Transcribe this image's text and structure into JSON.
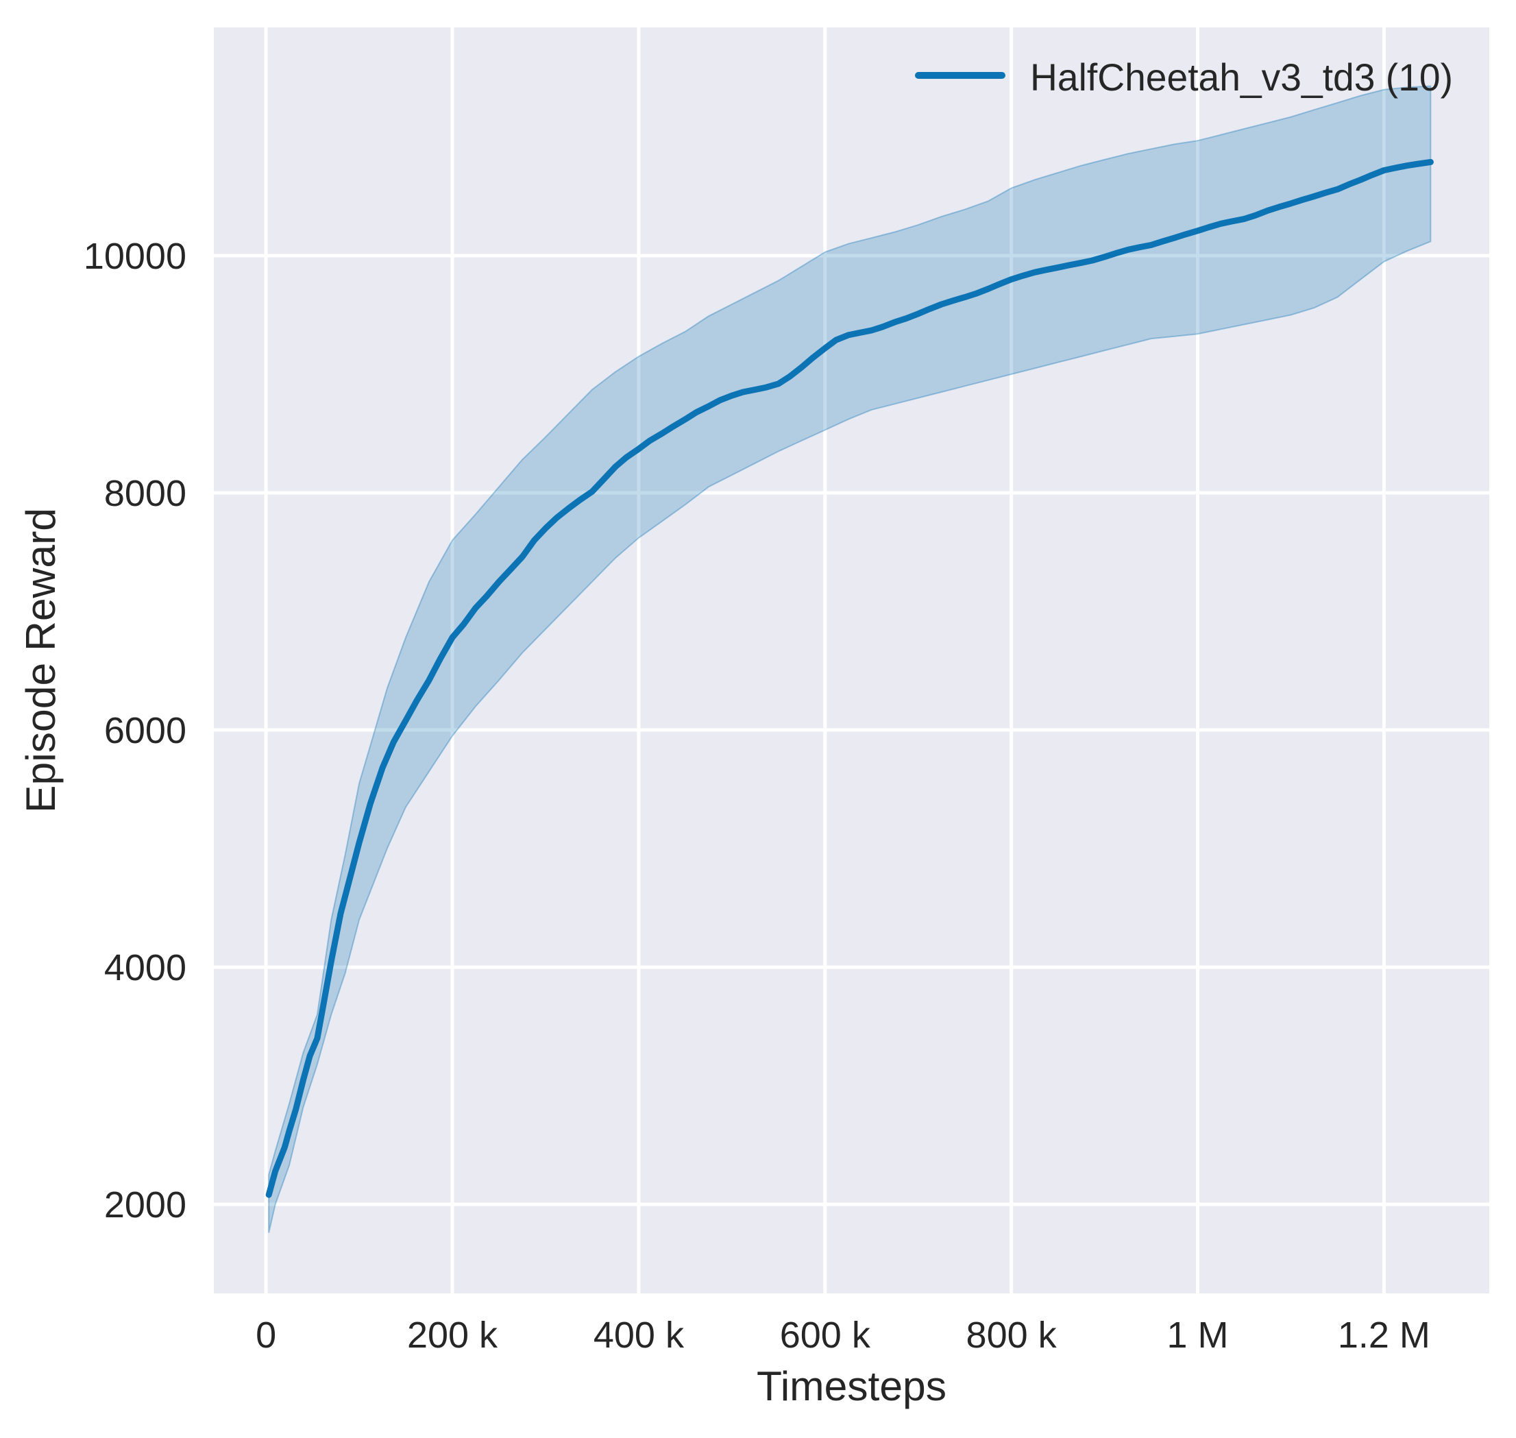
{
  "chart_data": {
    "type": "line",
    "title": "",
    "xlabel": "Timesteps",
    "ylabel": "Episode Reward",
    "grid": true,
    "legend_position": "upper right",
    "axes_background_color": "#eaeaf2",
    "grid_color": "#ffffff",
    "text_color": "#262626",
    "xlim": [
      -56000,
      1313000
    ],
    "ylim": [
      1249,
      11925
    ],
    "xticks": [
      {
        "value": 0,
        "label": "0"
      },
      {
        "value": 200000,
        "label": "200 k"
      },
      {
        "value": 400000,
        "label": "400 k"
      },
      {
        "value": 600000,
        "label": "600 k"
      },
      {
        "value": 800000,
        "label": "800 k"
      },
      {
        "value": 1000000,
        "label": "1 M"
      },
      {
        "value": 1200000,
        "label": "1.2 M"
      }
    ],
    "yticks": [
      {
        "value": 2000,
        "label": "2000"
      },
      {
        "value": 4000,
        "label": "4000"
      },
      {
        "value": 6000,
        "label": "6000"
      },
      {
        "value": 8000,
        "label": "8000"
      },
      {
        "value": 10000,
        "label": "10000"
      }
    ],
    "legend": {
      "entries": [
        {
          "label": "HalfCheetah_v3_td3 (10)",
          "color": "#0c73b4"
        }
      ]
    },
    "series": [
      {
        "name": "HalfCheetah_v3_td3 (10)",
        "color": "#0c73b4",
        "band_fill_opacity": 0.25,
        "band_edge_opacity": 0.35,
        "x": [
          3000,
          10000,
          20000,
          25000,
          32000,
          40000,
          47000,
          55000,
          62000,
          70000,
          80000,
          90000,
          100000,
          112000,
          125000,
          137000,
          150000,
          162000,
          175000,
          187000,
          200000,
          212000,
          225000,
          237000,
          250000,
          262000,
          275000,
          288000,
          300000,
          312000,
          325000,
          337000,
          350000,
          362000,
          375000,
          387000,
          400000,
          412000,
          425000,
          437000,
          450000,
          462000,
          475000,
          487000,
          500000,
          512000,
          525000,
          537000,
          550000,
          562000,
          575000,
          587000,
          600000,
          612000,
          625000,
          637000,
          650000,
          662000,
          675000,
          687000,
          700000,
          712000,
          725000,
          737000,
          750000,
          762000,
          775000,
          787000,
          800000,
          812000,
          825000,
          837000,
          850000,
          862000,
          875000,
          887000,
          900000,
          912000,
          925000,
          937000,
          950000,
          962000,
          975000,
          987000,
          1000000,
          1012000,
          1025000,
          1037000,
          1050000,
          1062000,
          1075000,
          1087000,
          1100000,
          1112000,
          1125000,
          1137000,
          1150000,
          1162000,
          1175000,
          1187000,
          1200000,
          1212000,
          1225000,
          1237000,
          1250000
        ],
        "y": [
          2080,
          2280,
          2480,
          2620,
          2800,
          3050,
          3250,
          3400,
          3700,
          4050,
          4450,
          4750,
          5050,
          5380,
          5680,
          5900,
          6080,
          6250,
          6420,
          6600,
          6780,
          6890,
          7030,
          7130,
          7250,
          7350,
          7460,
          7600,
          7700,
          7790,
          7870,
          7940,
          8010,
          8110,
          8220,
          8300,
          8370,
          8440,
          8500,
          8560,
          8620,
          8680,
          8730,
          8780,
          8820,
          8850,
          8870,
          8890,
          8920,
          8980,
          9060,
          9140,
          9220,
          9290,
          9330,
          9350,
          9370,
          9400,
          9440,
          9470,
          9510,
          9550,
          9590,
          9620,
          9650,
          9680,
          9720,
          9760,
          9800,
          9830,
          9860,
          9880,
          9900,
          9920,
          9940,
          9960,
          9990,
          10020,
          10050,
          10070,
          10090,
          10120,
          10150,
          10180,
          10210,
          10240,
          10270,
          10290,
          10310,
          10340,
          10380,
          10410,
          10440,
          10470,
          10500,
          10530,
          10560,
          10600,
          10640,
          10680,
          10720,
          10740,
          10760,
          10775,
          10790
        ],
        "band_x": [
          3000,
          10000,
          25000,
          40000,
          55000,
          70000,
          85000,
          100000,
          115000,
          130000,
          150000,
          175000,
          200000,
          225000,
          250000,
          275000,
          300000,
          325000,
          350000,
          375000,
          400000,
          425000,
          450000,
          475000,
          500000,
          525000,
          550000,
          575000,
          600000,
          625000,
          650000,
          675000,
          700000,
          725000,
          750000,
          775000,
          800000,
          825000,
          850000,
          875000,
          900000,
          925000,
          950000,
          975000,
          1000000,
          1025000,
          1050000,
          1075000,
          1100000,
          1125000,
          1150000,
          1175000,
          1200000,
          1225000,
          1250000
        ],
        "band_lo": [
          1760,
          2000,
          2330,
          2820,
          3180,
          3600,
          3950,
          4400,
          4700,
          5000,
          5350,
          5650,
          5950,
          6200,
          6420,
          6650,
          6850,
          7050,
          7250,
          7450,
          7620,
          7760,
          7900,
          8050,
          8150,
          8250,
          8350,
          8440,
          8530,
          8620,
          8700,
          8750,
          8800,
          8850,
          8900,
          8950,
          9000,
          9050,
          9100,
          9150,
          9200,
          9250,
          9300,
          9320,
          9340,
          9380,
          9420,
          9460,
          9500,
          9560,
          9650,
          9800,
          9950,
          10040,
          10120
        ],
        "band_hi": [
          2250,
          2450,
          2850,
          3280,
          3600,
          4400,
          4950,
          5550,
          5950,
          6350,
          6780,
          7250,
          7600,
          7820,
          8050,
          8280,
          8470,
          8670,
          8870,
          9020,
          9150,
          9260,
          9360,
          9490,
          9590,
          9690,
          9790,
          9910,
          10030,
          10100,
          10150,
          10200,
          10260,
          10330,
          10390,
          10460,
          10570,
          10640,
          10700,
          10760,
          10810,
          10860,
          10900,
          10940,
          10970,
          11020,
          11070,
          11120,
          11170,
          11230,
          11290,
          11350,
          11400,
          11420,
          11430
        ]
      }
    ]
  }
}
